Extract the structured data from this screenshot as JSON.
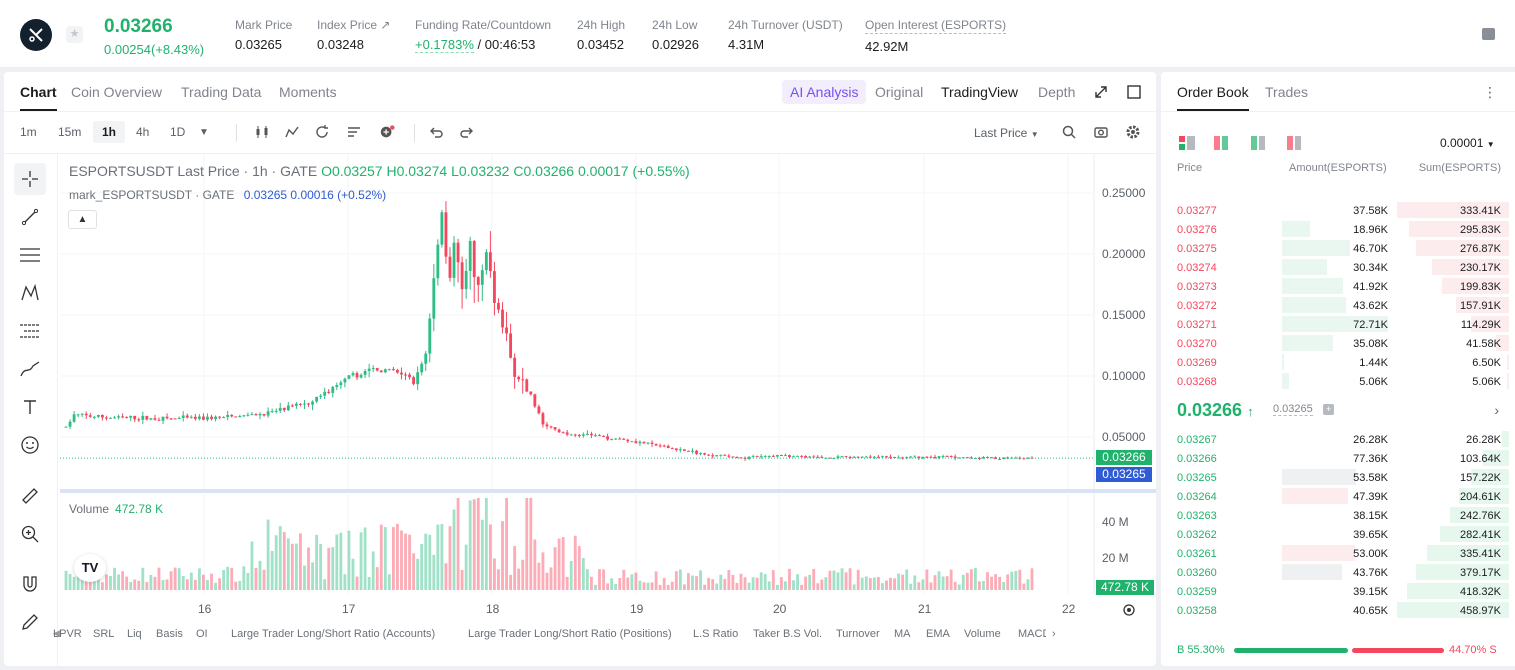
{
  "header": {
    "last_price": "0.03266",
    "change": "0.00254(+8.43%)",
    "stats": [
      {
        "label": "Mark Price",
        "value": "0.03265"
      },
      {
        "label": "Index Price ↗",
        "value": "0.03248"
      },
      {
        "label": "Funding Rate/Countdown",
        "value_a": "+0.1783%",
        "value_b": "/ 00:46:53"
      },
      {
        "label": "24h High",
        "value": "0.03452"
      },
      {
        "label": "24h Low",
        "value": "0.02926"
      },
      {
        "label": "24h Turnover (USDT)",
        "value": "4.31M"
      },
      {
        "label": "Open Interest (ESPORTS)",
        "value": "42.92M"
      }
    ]
  },
  "chart_panel": {
    "tabs": [
      "Chart",
      "Coin Overview",
      "Trading Data",
      "Moments"
    ],
    "ai_analysis": "AI Analysis",
    "views": [
      "Original",
      "TradingView",
      "Depth"
    ],
    "timeframes": [
      "1m",
      "15m",
      "1h",
      "4h",
      "1D"
    ],
    "price_type": "Last Price"
  },
  "chart_data": {
    "type": "candlestick",
    "legend_main": "ESPORTSUSDT Last Price · 1h · GATE",
    "ohlc": {
      "o": "O0.03257",
      "h": "H0.03274",
      "l": "L0.03232",
      "c": "C0.03266",
      "chg": "0.00017 (+0.55%)"
    },
    "legend_mark": "mark_ESPORTSUSDT · GATE",
    "mark_vals": "0.03265  0.00016 (+0.52%)",
    "volume_label": "Volume",
    "volume_value": "472.78 K",
    "y_ticks": [
      "0.25000",
      "0.20000",
      "0.15000",
      "0.10000",
      "0.05000"
    ],
    "y_range": [
      0.0,
      0.26
    ],
    "vol_ticks": [
      "40 M",
      "20 M"
    ],
    "x_ticks": [
      "16",
      "17",
      "18",
      "19",
      "20",
      "21",
      "22"
    ],
    "last_tag": "0.03266",
    "mark_tag": "0.03265",
    "vol_tag": "472.78 K",
    "up_color": "#2ebd85",
    "down_color": "#f6465d",
    "indicators": [
      "LPVR",
      "SRL",
      "Liq",
      "Basis",
      "OI",
      "Large Trader Long/Short Ratio (Accounts)",
      "Large Trader Long/Short Ratio (Positions)",
      "L.S Ratio",
      "Taker B.S Vol.",
      "Turnover",
      "MA",
      "EMA",
      "Volume",
      "MACD"
    ]
  },
  "order_book": {
    "tabs": [
      "Order Book",
      "Trades"
    ],
    "precision": "0.00001",
    "columns": [
      "Price",
      "Amount(ESPORTS)",
      "Sum(ESPORTS)"
    ],
    "asks": [
      {
        "p": "0.03277",
        "a": "37.58K",
        "s": "333.41K",
        "af": 0.0,
        "sf": 1.0
      },
      {
        "p": "0.03276",
        "a": "18.96K",
        "s": "295.83K",
        "af": 0.26,
        "sf": 0.89
      },
      {
        "p": "0.03275",
        "a": "46.70K",
        "s": "276.87K",
        "af": 0.64,
        "sf": 0.83
      },
      {
        "p": "0.03274",
        "a": "30.34K",
        "s": "230.17K",
        "af": 0.42,
        "sf": 0.69
      },
      {
        "p": "0.03273",
        "a": "41.92K",
        "s": "199.83K",
        "af": 0.58,
        "sf": 0.6
      },
      {
        "p": "0.03272",
        "a": "43.62K",
        "s": "157.91K",
        "af": 0.6,
        "sf": 0.47
      },
      {
        "p": "0.03271",
        "a": "72.71K",
        "s": "114.29K",
        "af": 1.0,
        "sf": 0.34
      },
      {
        "p": "0.03270",
        "a": "35.08K",
        "s": "41.58K",
        "af": 0.48,
        "sf": 0.12
      },
      {
        "p": "0.03269",
        "a": "1.44K",
        "s": "6.50K",
        "af": 0.02,
        "sf": 0.02
      },
      {
        "p": "0.03268",
        "a": "5.06K",
        "s": "5.06K",
        "af": 0.07,
        "sf": 0.015
      }
    ],
    "mid_price": "0.03266",
    "mid_mark": "0.03265",
    "bids": [
      {
        "p": "0.03267",
        "a": "26.28K",
        "s": "26.28K",
        "af": 0.0,
        "sf": 0.06
      },
      {
        "p": "0.03266",
        "a": "77.36K",
        "s": "103.64K",
        "af": 0.0,
        "sf": 0.23
      },
      {
        "p": "0.03265",
        "a": "53.58K",
        "s": "157.22K",
        "af": 0.7,
        "sf": 0.34
      },
      {
        "p": "0.03264",
        "a": "47.39K",
        "s": "204.61K",
        "af": 0.62,
        "sf": 0.45
      },
      {
        "p": "0.03263",
        "a": "38.15K",
        "s": "242.76K",
        "af": 0.0,
        "sf": 0.53
      },
      {
        "p": "0.03262",
        "a": "39.65K",
        "s": "282.41K",
        "af": 0.0,
        "sf": 0.62
      },
      {
        "p": "0.03261",
        "a": "53.00K",
        "s": "335.41K",
        "af": 0.69,
        "sf": 0.73
      },
      {
        "p": "0.03260",
        "a": "43.76K",
        "s": "379.17K",
        "af": 0.57,
        "sf": 0.83
      },
      {
        "p": "0.03259",
        "a": "39.15K",
        "s": "418.32K",
        "af": 0.0,
        "sf": 0.91
      },
      {
        "p": "0.03258",
        "a": "40.65K",
        "s": "458.97K",
        "af": 0.0,
        "sf": 1.0
      }
    ],
    "buy_ratio": "B 55.30%",
    "sell_ratio": "44.70% S",
    "buy_fraction": 0.553
  }
}
